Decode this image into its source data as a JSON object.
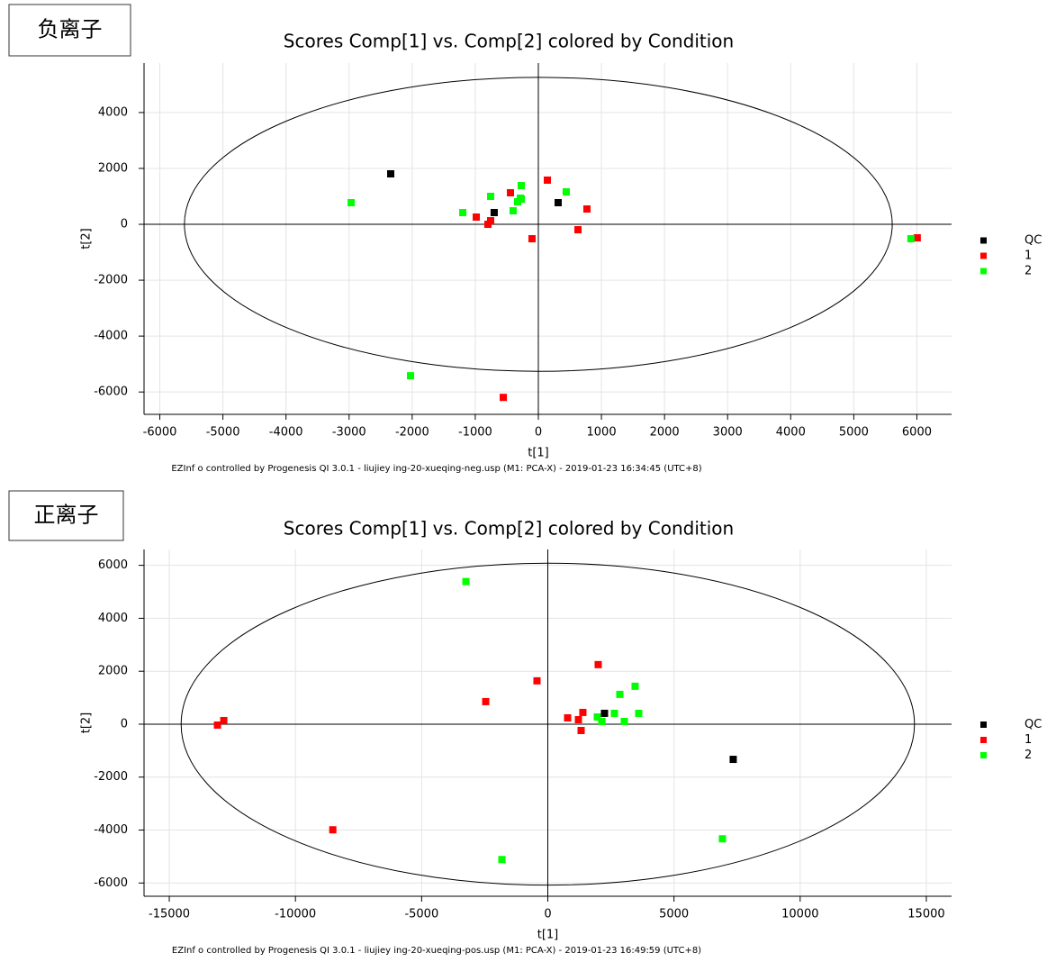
{
  "chart_data": [
    {
      "type": "scatter",
      "label": "负离子",
      "title": "Scores Comp[1] vs. Comp[2] colored by Condition",
      "x_label": "t[1]",
      "y_label": "t[2]",
      "note": "EZInf o controlled by  Progenesis  QI  3.0.1 - liujiey ing-20-xueqing-neg.usp (M1:  PCA-X) - 2019-01-23 16:34:45  (UTC+8)",
      "xlim": [
        -6250,
        6550
      ],
      "ylim": [
        -6800,
        5770
      ],
      "xticks": [
        -6000,
        -5000,
        -4000,
        -3000,
        -2000,
        -1000,
        0,
        1000,
        2000,
        3000,
        4000,
        5000,
        6000
      ],
      "yticks": [
        -6000,
        -4000,
        -2000,
        0,
        2000,
        4000
      ],
      "grid": true,
      "ellipse": {
        "rx": 5610,
        "ry": 5260
      },
      "series": [
        {
          "name": "QC",
          "color": "#000000",
          "x": [
            -2340,
            -700,
            314
          ],
          "values": [
            1806,
            420,
            774
          ]
        },
        {
          "name": "1",
          "color": "#ff0000",
          "x": [
            -442,
            143,
            770,
            -984,
            -799,
            -756,
            -100,
            628,
            6006,
            -556
          ],
          "values": [
            1129,
            1580,
            548,
            258,
            0,
            129,
            -516,
            -194,
            -484,
            -6194
          ]
        },
        {
          "name": "2",
          "color": "#00ff00",
          "x": [
            -2967,
            -2026,
            -1198,
            -756,
            -271,
            -400,
            -328,
            -285,
            -271,
            442,
            5906
          ],
          "values": [
            774,
            -5419,
            419,
            1000,
            1387,
            484,
            806,
            935,
            903,
            1161,
            -516
          ]
        }
      ]
    },
    {
      "type": "scatter",
      "label": "正离子",
      "title": "Scores Comp[1] vs. Comp[2] colored by Condition",
      "x_label": "t[1]",
      "y_label": "t[2]",
      "note": "EZInf o controlled by  Progenesis  QI  3.0.1 - liujiey ing-20-xueqing-pos.usp (M1:  PCA-X) - 2019-01-23 16:49:59  (UTC+8)",
      "xlim": [
        -16000,
        16000
      ],
      "ylim": [
        -6500,
        6600
      ],
      "xticks": [
        -15000,
        -10000,
        -5000,
        0,
        5000,
        10000,
        15000
      ],
      "yticks": [
        -6000,
        -4000,
        -2000,
        0,
        2000,
        4000,
        6000
      ],
      "grid": true,
      "ellipse": {
        "rx": 14530,
        "ry": 6080
      },
      "series": [
        {
          "name": "QC",
          "color": "#000000",
          "x": [
            2247,
            7347
          ],
          "values": [
            409,
            -1330
          ]
        },
        {
          "name": "1",
          "color": "#ff0000",
          "x": [
            -13090,
            -12840,
            -8520,
            -2460,
            -428,
            1997,
            785,
            1213,
            1390,
            1320
          ],
          "values": [
            -34,
            136,
            -3990,
            852,
            1637,
            2250,
            239,
            170,
            443,
            -239
          ]
        },
        {
          "name": "2",
          "color": "#00ff00",
          "x": [
            -3245,
            -1819,
            1961,
            2140,
            2640,
            2853,
            3031,
            3459,
            3602,
            6919
          ],
          "values": [
            5387,
            -5114,
            273,
            102,
            409,
            1125,
            102,
            1432,
            409,
            -4330
          ]
        }
      ]
    }
  ]
}
